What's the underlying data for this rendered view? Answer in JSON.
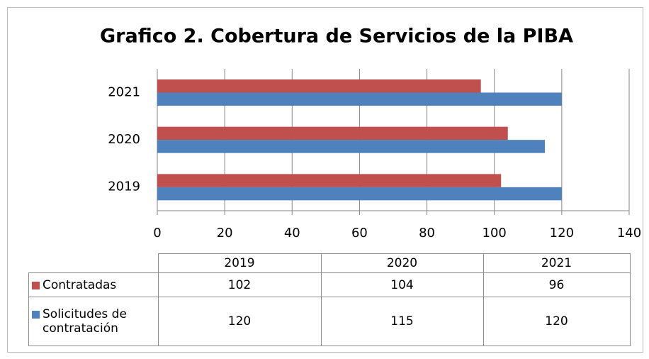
{
  "chart_data": {
    "type": "hbar",
    "title": "Grafico 2. Cobertura de Servicios de la PIBA",
    "categories": [
      "2019",
      "2020",
      "2021"
    ],
    "series": [
      {
        "name": "Contratadas",
        "color": "#c0504d",
        "values": [
          102,
          104,
          96
        ]
      },
      {
        "name": "Solicitudes de contratación",
        "color": "#4f81bd",
        "values": [
          120,
          115,
          120
        ]
      }
    ],
    "xlim": [
      0,
      140
    ],
    "xticks": [
      0,
      20,
      40,
      60,
      80,
      100,
      120,
      140
    ],
    "grid": true,
    "data_table": true
  }
}
